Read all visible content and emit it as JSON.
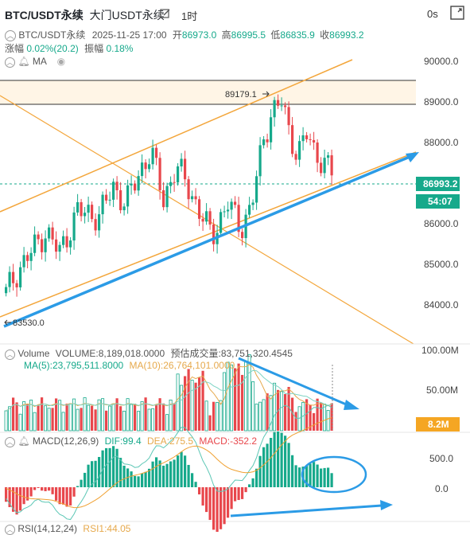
{
  "header": {
    "symbol": "BTC/USDT永续",
    "exchange_label": "大门USDT永续",
    "timeframe": "1时",
    "countdown": "0s"
  },
  "ohlc": {
    "symbol": "BTC/USDT永续",
    "datetime": "2025-11-25 17:00",
    "open_label": "开",
    "open": "86973.0",
    "high_label": "高",
    "high": "86995.5",
    "low_label": "低",
    "low": "86835.9",
    "close_label": "收",
    "close": "86993.2",
    "change_label": "涨幅",
    "change": "0.02%(20.2)",
    "amplitude_label": "振幅",
    "amplitude": "0.18%"
  },
  "indicator": {
    "ma_label": "MA"
  },
  "price_axis": [
    "90000.0",
    "89000.0",
    "88000.0",
    "86000.0",
    "85000.0",
    "84000.0"
  ],
  "price_badge": {
    "price": "86993.2",
    "countdown": "54:07"
  },
  "annotations": {
    "high_marker": "89179.1",
    "low_marker": "83530.0"
  },
  "volume": {
    "title": "Volume",
    "volume_text": "VOLUME:8,189,018.0000",
    "forecast_text": "预估成交量:83,751,320.4545",
    "ma5_text": "MA(5):23,795,511.8000",
    "ma10_text": "MA(10):26,764,101.0000",
    "axis": [
      "100.00M",
      "50.00M"
    ],
    "badge": "8.2M"
  },
  "macd": {
    "title": "MACD(12,26,9)",
    "dif_text": "DIF:99.4",
    "dea_text": "DEA:275.5",
    "macd_text": "MACD:-352.2",
    "axis": [
      "500.0",
      "0.0"
    ]
  },
  "rsi": {
    "title": "RSI(14,12,24)",
    "value_text": "RSI1:44.05"
  },
  "colors": {
    "up": "#16a98b",
    "down": "#e8474c",
    "trend": "#f3a63b",
    "arrow": "#2b9be6",
    "ma5": "#e6a94c",
    "ma10": "#7fd4c4"
  },
  "icons": [
    "edit-icon",
    "fullscreen-icon",
    "eye-icon",
    "bell-icon",
    "chevron-icon"
  ]
}
